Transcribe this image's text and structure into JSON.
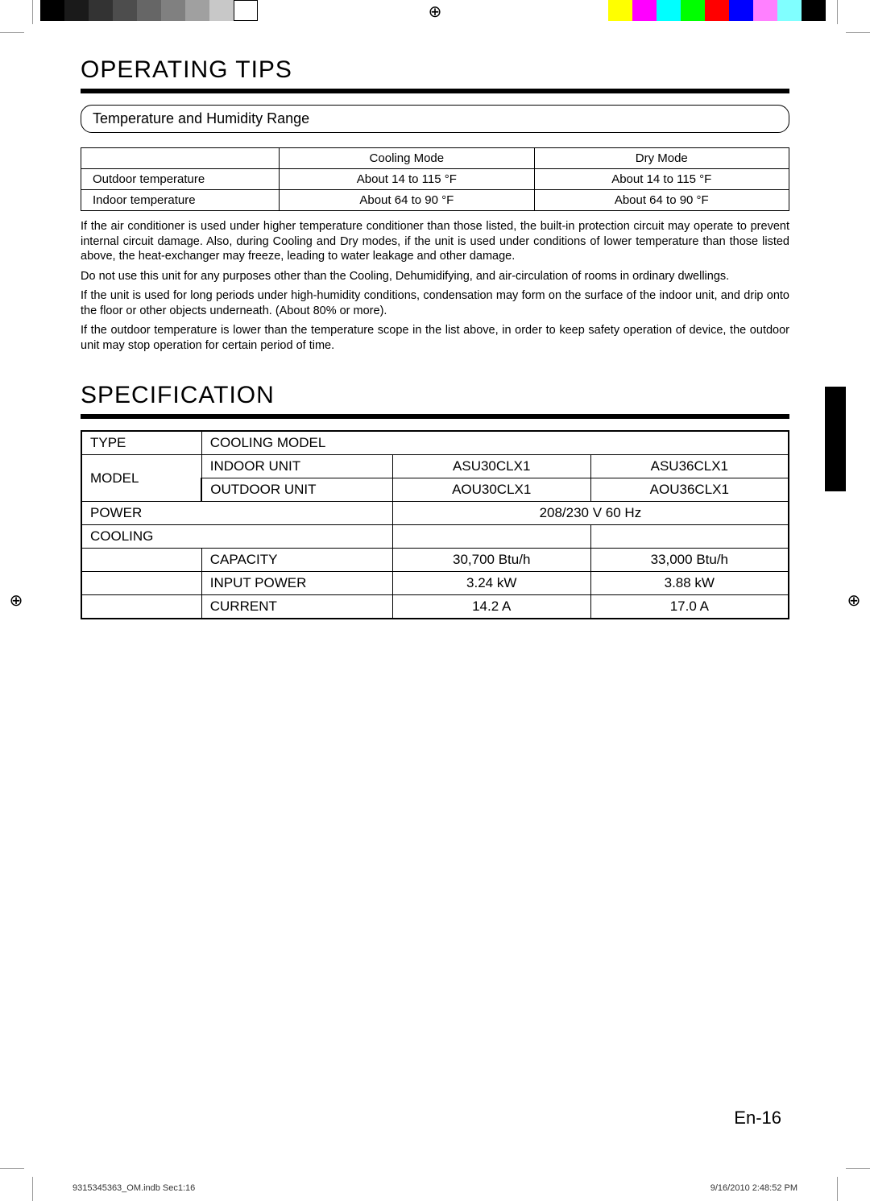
{
  "print_marks": {
    "gray_swatches": [
      "#000000",
      "#1a1a1a",
      "#333333",
      "#4d4d4d",
      "#666666",
      "#808080",
      "#a0a0a0",
      "#c8c8c8",
      "#ffffff"
    ],
    "color_swatches": [
      "#ffff00",
      "#ff00ff",
      "#00ffff",
      "#00ff00",
      "#ff0000",
      "#0000ff",
      "#ff80ff",
      "#80ffff",
      "#000000"
    ]
  },
  "section1": {
    "heading": "OPERATING TIPS",
    "subheading": "Temperature and Humidity Range",
    "table": {
      "columns": [
        "",
        "Cooling Mode",
        "Dry Mode"
      ],
      "rows": [
        [
          "Outdoor temperature",
          "About 14 to 115 °F",
          "About 14 to 115 °F"
        ],
        [
          "Indoor temperature",
          "About 64 to 90 °F",
          "About 64 to 90 °F"
        ]
      ]
    },
    "paragraphs": [
      "If the air conditioner is used under higher temperature conditioner than those listed, the built-in protection circuit may operate to prevent internal circuit damage. Also, during Cooling and Dry modes, if the unit is used under conditions of lower temperature than those listed above, the heat-exchanger may freeze, leading to water leakage and other damage.",
      "Do not use this unit for any purposes other than the Cooling, Dehumidifying, and air-circulation of rooms in ordinary dwellings.",
      "If the unit is used for long periods under high-humidity conditions, condensation may form on the surface of the indoor unit, and drip onto the floor or other objects underneath. (About 80% or more).",
      "If the outdoor temperature is lower than the temperature scope in the list above, in order to keep safety operation of device, the outdoor unit may stop operation for certain period of time."
    ]
  },
  "section2": {
    "heading": "SPECIFICATION",
    "rows": {
      "type_label": "TYPE",
      "type_value": "COOLING MODEL",
      "model_label": "MODEL",
      "indoor_label": "INDOOR UNIT",
      "indoor_a": "ASU30CLX1",
      "indoor_b": "ASU36CLX1",
      "outdoor_label": "OUTDOOR UNIT",
      "outdoor_a": "AOU30CLX1",
      "outdoor_b": "AOU36CLX1",
      "power_label": "POWER",
      "power_value": "208/230 V 60 Hz",
      "cooling_label": "COOLING",
      "capacity_label": "CAPACITY",
      "capacity_a": "30,700 Btu/h",
      "capacity_b": "33,000 Btu/h",
      "input_label": "INPUT POWER",
      "input_a": "3.24 kW",
      "input_b": "3.88 kW",
      "current_label": "CURRENT",
      "current_a": "14.2 A",
      "current_b": "17.0 A"
    }
  },
  "page_number": "En-16",
  "footer": {
    "left": "9315345363_OM.indb   Sec1:16",
    "right": "9/16/2010   2:48:52 PM"
  }
}
